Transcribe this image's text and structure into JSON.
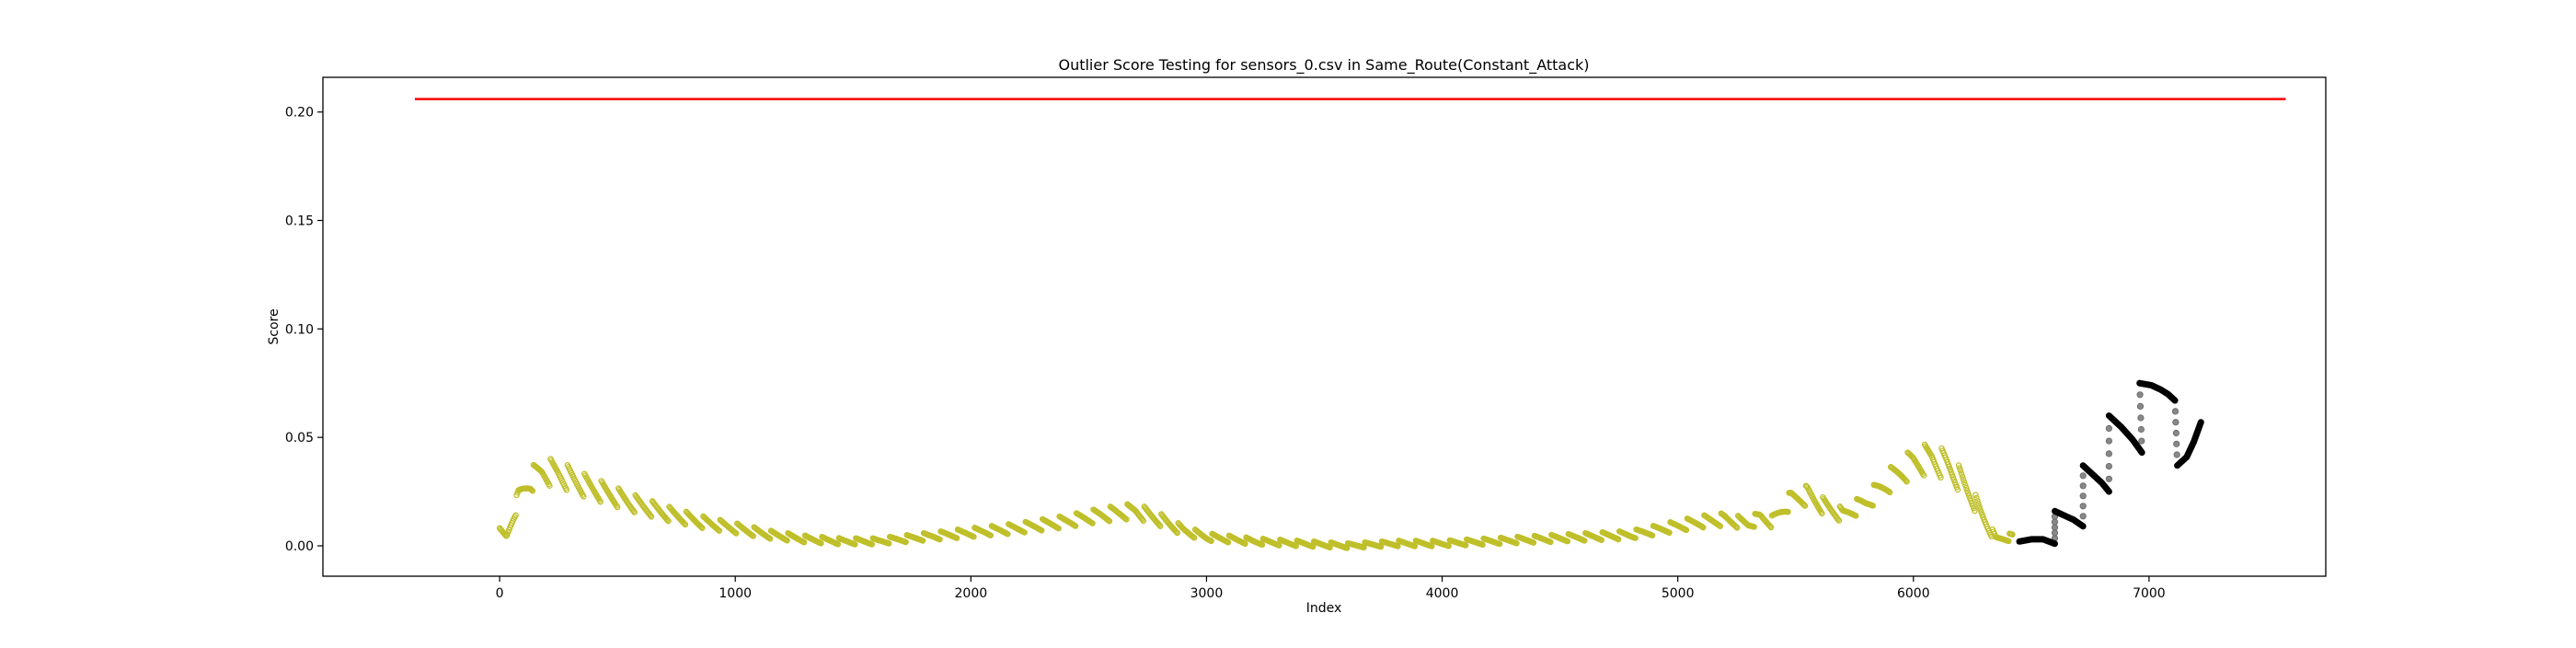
{
  "chart_data": {
    "type": "scatter",
    "title": "Outlier Score Testing for sensors_0.csv in Same_Route(Constant_Attack)",
    "xlabel": "Index",
    "ylabel": "Score",
    "xlim": [
      -750,
      7750
    ],
    "ylim": [
      -0.014,
      0.216
    ],
    "x_ticks": [
      0,
      1000,
      2000,
      3000,
      4000,
      5000,
      6000,
      7000
    ],
    "y_ticks": [
      0.0,
      0.05,
      0.1,
      0.15,
      0.2
    ],
    "x_tick_labels": [
      "0",
      "1000",
      "2000",
      "3000",
      "4000",
      "5000",
      "6000",
      "7000"
    ],
    "y_tick_labels": [
      "0.00",
      "0.05",
      "0.10",
      "0.15",
      "0.20"
    ],
    "grid": false,
    "legend": "none",
    "threshold": {
      "y": 0.206,
      "x_start": -360,
      "x_end": 7580,
      "color": "#ff0000"
    },
    "series": [
      {
        "style": "normal",
        "color": "#bfbf2a",
        "envelope": [
          [
            0,
            0.006
          ],
          [
            30,
            0.004
          ],
          [
            80,
            0.022
          ],
          [
            130,
            0.03
          ],
          [
            180,
            0.034
          ],
          [
            250,
            0.033
          ],
          [
            350,
            0.028
          ],
          [
            450,
            0.024
          ],
          [
            550,
            0.02
          ],
          [
            700,
            0.015
          ],
          [
            850,
            0.011
          ],
          [
            1000,
            0.008
          ],
          [
            1150,
            0.005
          ],
          [
            1300,
            0.003
          ],
          [
            1450,
            0.002
          ],
          [
            1600,
            0.002
          ],
          [
            1800,
            0.004
          ],
          [
            2000,
            0.006
          ],
          [
            2200,
            0.008
          ],
          [
            2400,
            0.011
          ],
          [
            2550,
            0.014
          ],
          [
            2700,
            0.016
          ],
          [
            2800,
            0.012
          ],
          [
            2900,
            0.007
          ],
          [
            3000,
            0.004
          ],
          [
            3200,
            0.002
          ],
          [
            3400,
            0.001
          ],
          [
            3600,
            0.0
          ],
          [
            3800,
            0.001
          ],
          [
            4000,
            0.001
          ],
          [
            4200,
            0.002
          ],
          [
            4400,
            0.003
          ],
          [
            4600,
            0.004
          ],
          [
            4800,
            0.005
          ],
          [
            4900,
            0.007
          ],
          [
            5000,
            0.009
          ],
          [
            5100,
            0.011
          ],
          [
            5200,
            0.012
          ],
          [
            5300,
            0.01
          ],
          [
            5350,
            0.013
          ],
          [
            5400,
            0.011
          ],
          [
            5480,
            0.021
          ],
          [
            5550,
            0.023
          ],
          [
            5620,
            0.018
          ],
          [
            5700,
            0.014
          ],
          [
            5800,
            0.02
          ],
          [
            5900,
            0.03
          ],
          [
            6000,
            0.038
          ],
          [
            6080,
            0.04
          ],
          [
            6150,
            0.036
          ],
          [
            6200,
            0.03
          ],
          [
            6250,
            0.022
          ],
          [
            6300,
            0.012
          ],
          [
            6350,
            0.003
          ],
          [
            6420,
            0.004
          ]
        ]
      },
      {
        "style": "attack",
        "color": "#000000",
        "segments": [
          [
            [
              6450,
              0.002
            ],
            [
              6500,
              0.003
            ],
            [
              6550,
              0.003
            ],
            [
              6600,
              0.001
            ]
          ],
          [
            [
              6600,
              0.016
            ],
            [
              6640,
              0.014
            ],
            [
              6680,
              0.012
            ],
            [
              6720,
              0.009
            ]
          ],
          [
            [
              6720,
              0.037
            ],
            [
              6760,
              0.033
            ],
            [
              6800,
              0.029
            ],
            [
              6830,
              0.025
            ]
          ],
          [
            [
              6830,
              0.06
            ],
            [
              6880,
              0.055
            ],
            [
              6930,
              0.049
            ],
            [
              6970,
              0.043
            ]
          ],
          [
            [
              6960,
              0.075
            ],
            [
              7010,
              0.074
            ],
            [
              7050,
              0.072
            ],
            [
              7080,
              0.07
            ],
            [
              7110,
              0.067
            ]
          ],
          [
            [
              7120,
              0.037
            ],
            [
              7160,
              0.041
            ],
            [
              7190,
              0.048
            ],
            [
              7220,
              0.057
            ]
          ]
        ],
        "connectors": [
          [
            6600,
            0.001,
            6600,
            0.016
          ],
          [
            6720,
            0.009,
            6720,
            0.037
          ],
          [
            6830,
            0.025,
            6830,
            0.06
          ],
          [
            6970,
            0.043,
            6960,
            0.075
          ],
          [
            7110,
            0.067,
            7120,
            0.037
          ]
        ]
      }
    ]
  }
}
